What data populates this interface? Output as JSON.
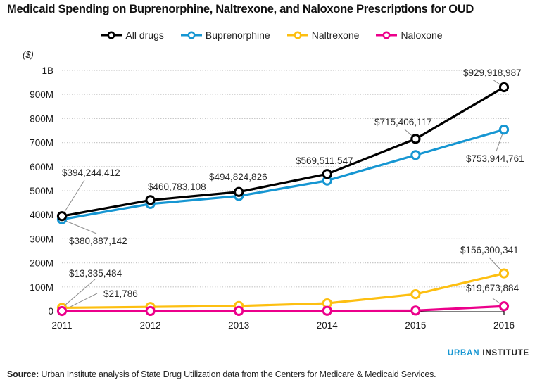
{
  "chart_data": {
    "type": "line",
    "title": "Medicaid Spending on Buprenorphine, Naltrexone, and Naloxone Prescriptions for OUD",
    "ylabel": "($)",
    "xlabel": "",
    "x": [
      "2011",
      "2012",
      "2013",
      "2014",
      "2015",
      "2016"
    ],
    "ylim": [
      0,
      1000000000
    ],
    "yticks": [
      {
        "value": 0,
        "label": "0"
      },
      {
        "value": 100000000,
        "label": "100M"
      },
      {
        "value": 200000000,
        "label": "200M"
      },
      {
        "value": 300000000,
        "label": "300M"
      },
      {
        "value": 400000000,
        "label": "400M"
      },
      {
        "value": 500000000,
        "label": "500M"
      },
      {
        "value": 600000000,
        "label": "600M"
      },
      {
        "value": 700000000,
        "label": "700M"
      },
      {
        "value": 800000000,
        "label": "800M"
      },
      {
        "value": 900000000,
        "label": "900M"
      },
      {
        "value": 1000000000,
        "label": "1B"
      }
    ],
    "grid": true,
    "legend_position": "top-center",
    "series": [
      {
        "name": "All drugs",
        "color": "#000000",
        "values": [
          394244412,
          460783108,
          494824826,
          569511547,
          715406117,
          929918987
        ]
      },
      {
        "name": "Buprenorphine",
        "color": "#1696d2",
        "values": [
          380887142,
          445000000,
          478000000,
          542000000,
          648000000,
          753944761
        ]
      },
      {
        "name": "Naltrexone",
        "color": "#fdbf11",
        "values": [
          13335484,
          17000000,
          21000000,
          32000000,
          70000000,
          156300341
        ]
      },
      {
        "name": "Naloxone",
        "color": "#ec008b",
        "values": [
          21786,
          200000,
          400000,
          900000,
          2000000,
          19673884
        ]
      }
    ],
    "annotations": [
      {
        "series": 0,
        "index": 0,
        "text": "$394,244,412",
        "anchor": "above-right"
      },
      {
        "series": 0,
        "index": 1,
        "text": "$460,783,108",
        "anchor": "above"
      },
      {
        "series": 0,
        "index": 2,
        "text": "$494,824,826",
        "anchor": "above"
      },
      {
        "series": 0,
        "index": 3,
        "text": "$569,511,547",
        "anchor": "above"
      },
      {
        "series": 0,
        "index": 4,
        "text": "$715,406,117",
        "anchor": "above-left"
      },
      {
        "series": 0,
        "index": 5,
        "text": "$929,918,987",
        "anchor": "above"
      },
      {
        "series": 1,
        "index": 0,
        "text": "$380,887,142",
        "anchor": "below-right"
      },
      {
        "series": 1,
        "index": 5,
        "text": "$753,944,761",
        "anchor": "below"
      },
      {
        "series": 2,
        "index": 0,
        "text": "$13,335,484",
        "anchor": "above-right"
      },
      {
        "series": 3,
        "index": 0,
        "text": "$21,786",
        "anchor": "above-right"
      },
      {
        "series": 2,
        "index": 5,
        "text": "$156,300,341",
        "anchor": "above"
      },
      {
        "series": 3,
        "index": 5,
        "text": "$19,673,884",
        "anchor": "above"
      }
    ]
  },
  "title": "Medicaid Spending on Buprenorphine, Naltrexone, and Naloxone Prescriptions for OUD",
  "unit_label": "($)",
  "legend": [
    {
      "label": "All drugs",
      "color": "#000000"
    },
    {
      "label": "Buprenorphine",
      "color": "#1696d2"
    },
    {
      "label": "Naltrexone",
      "color": "#fdbf11"
    },
    {
      "label": "Naloxone",
      "color": "#ec008b"
    }
  ],
  "brand": {
    "part1": "URBAN",
    "part2": " INSTITUTE"
  },
  "source": {
    "label": "Source:",
    "text": " Urban Institute analysis of State Drug Utilization data from the Centers for Medicare & Medicaid Services."
  }
}
